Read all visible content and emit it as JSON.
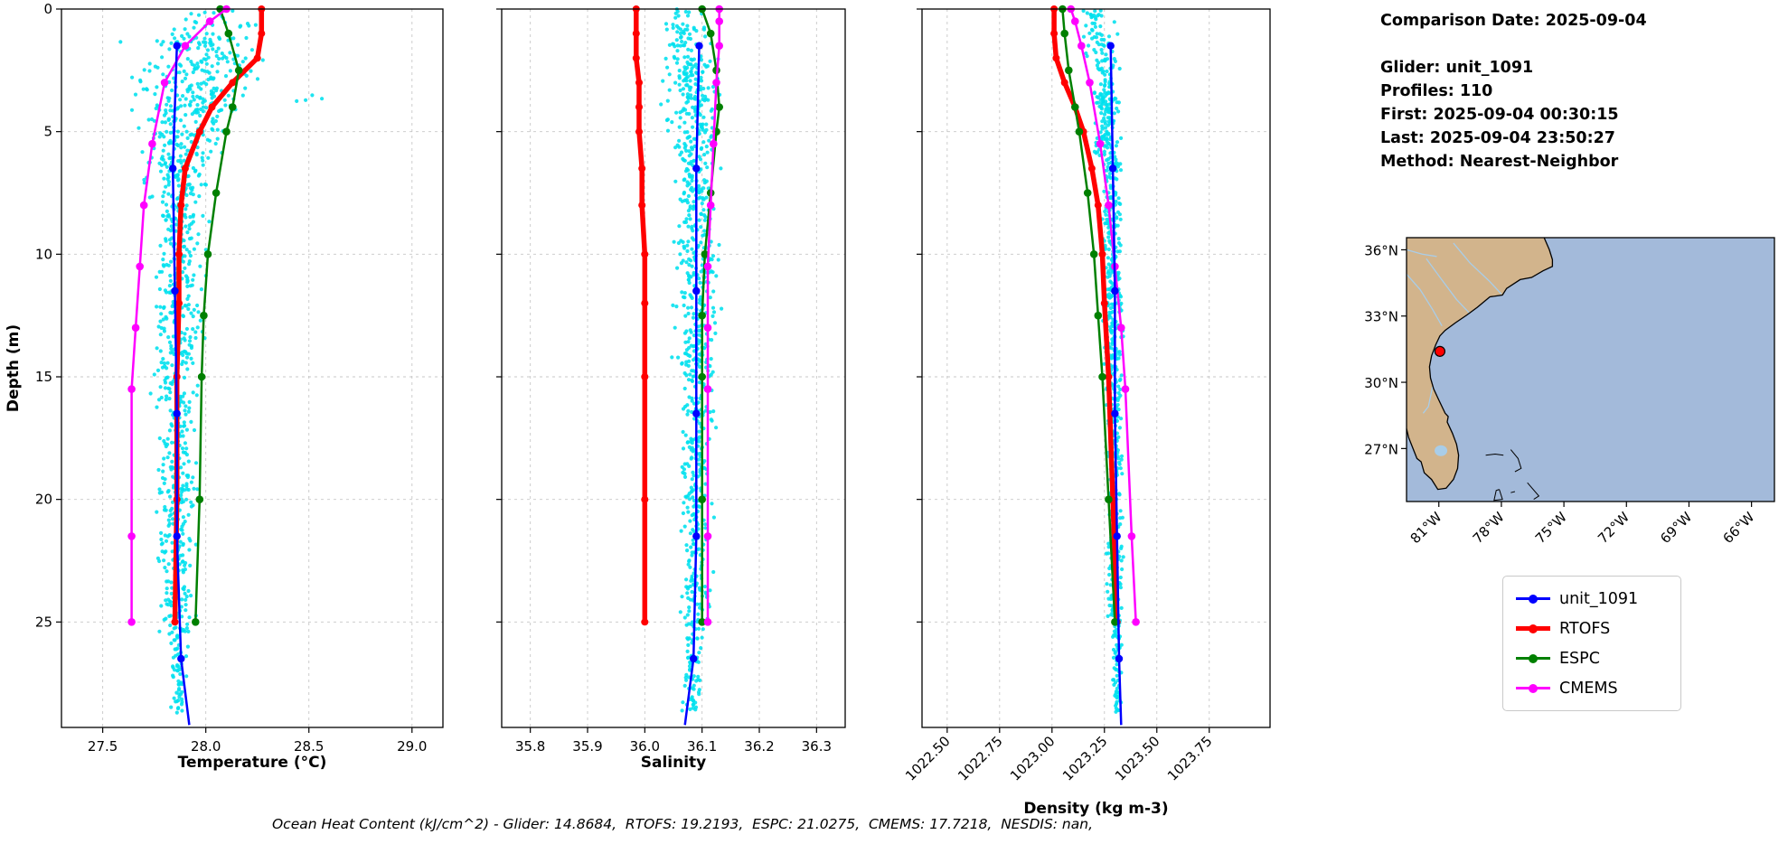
{
  "info_panel": {
    "comparison_date": "Comparison Date: 2025-09-04",
    "glider": "Glider: unit_1091",
    "profiles": "Profiles: 110",
    "first": "First: 2025-09-04 00:30:15",
    "last": "Last: 2025-09-04 23:50:27",
    "method": "Method: Nearest-Neighbor"
  },
  "footer_note": "Ocean Heat Content (kJ/cm^2) - Glider: 14.8684,  RTOFS: 19.2193,  ESPC: 21.0275,  CMEMS: 17.7218,  NESDIS: nan,",
  "legend": {
    "items": [
      {
        "label": "unit_1091",
        "color": "#0000ff",
        "line_width": 3
      },
      {
        "label": "RTOFS",
        "color": "#ff0000",
        "line_width": 5
      },
      {
        "label": "ESPC",
        "color": "#008000",
        "line_width": 3
      },
      {
        "label": "CMEMS",
        "color": "#ff00ff",
        "line_width": 3
      }
    ]
  },
  "chart_data": [
    {
      "type": "line",
      "name": "temperature",
      "xlabel": "Temperature (°C)",
      "ylabel": "Depth (m)",
      "xlim": [
        27.3,
        29.15
      ],
      "ylim": [
        0,
        29.3
      ],
      "xticks": [
        27.5,
        28.0,
        28.5,
        29.0
      ],
      "xtick_labels": [
        "27.5",
        "28.0",
        "28.5",
        "29.0"
      ],
      "yticks": [
        0,
        5,
        10,
        15,
        20,
        25
      ],
      "grid": true,
      "rotate_xticks": false,
      "scatter": {
        "name": "glider-temperature-observations",
        "color": "#00e0ee",
        "seed": 7,
        "bands": [
          {
            "depth": [
              0,
              1
            ],
            "center": 28.02,
            "spread": 0.28,
            "count": 22
          },
          {
            "depth": [
              1,
              3
            ],
            "center": 27.95,
            "spread": 0.42,
            "count": 130
          },
          {
            "depth": [
              2.5,
              4
            ],
            "center": 28.5,
            "spread": 0.12,
            "count": 4
          },
          {
            "depth": [
              3,
              5
            ],
            "center": 27.92,
            "spread": 0.33,
            "count": 130
          },
          {
            "depth": [
              5,
              8
            ],
            "center": 27.88,
            "spread": 0.24,
            "count": 160
          },
          {
            "depth": [
              8,
              15
            ],
            "center": 27.87,
            "spread": 0.17,
            "count": 240
          },
          {
            "depth": [
              15,
              22
            ],
            "center": 27.86,
            "spread": 0.14,
            "count": 200
          },
          {
            "depth": [
              22,
              25.5
            ],
            "center": 27.86,
            "spread": 0.11,
            "count": 100
          },
          {
            "depth": [
              25.5,
              28.7
            ],
            "center": 27.87,
            "spread": 0.05,
            "count": 55
          }
        ]
      },
      "series": [
        {
          "name": "RTOFS",
          "color": "#ff0000",
          "width": 5.5,
          "marker": 4,
          "depth": [
            0,
            1,
            2,
            3,
            4,
            5,
            6.5,
            8,
            10,
            12,
            15,
            20,
            25
          ],
          "values": [
            28.27,
            28.27,
            28.25,
            28.13,
            28.03,
            27.97,
            27.9,
            27.88,
            27.87,
            27.87,
            27.86,
            27.86,
            27.85
          ]
        },
        {
          "name": "ESPC",
          "color": "#008000",
          "width": 2.5,
          "marker": 4.3,
          "depth": [
            0,
            1,
            2.5,
            4,
            5,
            7.5,
            10,
            12.5,
            15,
            20,
            25
          ],
          "values": [
            28.07,
            28.11,
            28.16,
            28.13,
            28.1,
            28.05,
            28.01,
            27.99,
            27.98,
            27.97,
            27.95
          ]
        },
        {
          "name": "CMEMS",
          "color": "#ff00ff",
          "width": 2.5,
          "marker": 4.3,
          "depth": [
            0,
            0.5,
            1.5,
            3,
            5.5,
            8,
            10.5,
            13,
            15.5,
            21.5,
            25
          ],
          "values": [
            28.1,
            28.02,
            27.9,
            27.8,
            27.74,
            27.7,
            27.68,
            27.66,
            27.64,
            27.64,
            27.64
          ]
        },
        {
          "name": "unit_1091",
          "color": "#0000ff",
          "width": 2.5,
          "marker": 4.2,
          "depth": [
            1.5,
            6.5,
            11.5,
            16.5,
            21.5,
            26.5
          ],
          "values": [
            27.86,
            27.84,
            27.85,
            27.86,
            27.86,
            27.88
          ],
          "tail": [
            29.2,
            27.92
          ]
        }
      ]
    },
    {
      "type": "line",
      "name": "salinity",
      "xlabel": "Salinity",
      "ylabel": "",
      "xlim": [
        35.75,
        36.35
      ],
      "ylim": [
        0,
        29.3
      ],
      "xticks": [
        35.8,
        35.9,
        36.0,
        36.1,
        36.2,
        36.3
      ],
      "xtick_labels": [
        "35.8",
        "35.9",
        "36.0",
        "36.1",
        "36.2",
        "36.3"
      ],
      "yticks": [
        0,
        5,
        10,
        15,
        20,
        25
      ],
      "grid": true,
      "rotate_xticks": false,
      "scatter": {
        "name": "glider-salinity-observations",
        "color": "#00e0ee",
        "seed": 11,
        "bands": [
          {
            "depth": [
              0,
              2
            ],
            "center": 36.07,
            "spread": 0.055,
            "count": 55
          },
          {
            "depth": [
              2,
              6
            ],
            "center": 36.085,
            "spread": 0.06,
            "count": 180
          },
          {
            "depth": [
              6,
              15
            ],
            "center": 36.09,
            "spread": 0.05,
            "count": 300
          },
          {
            "depth": [
              15,
              25
            ],
            "center": 36.09,
            "spread": 0.04,
            "count": 240
          },
          {
            "depth": [
              25,
              28.7
            ],
            "center": 36.085,
            "spread": 0.025,
            "count": 70
          }
        ]
      },
      "series": [
        {
          "name": "RTOFS",
          "color": "#ff0000",
          "width": 5.5,
          "marker": 4,
          "depth": [
            0,
            1,
            2,
            3,
            4,
            5,
            6.5,
            8,
            10,
            12,
            15,
            20,
            25
          ],
          "values": [
            35.985,
            35.985,
            35.985,
            35.99,
            35.99,
            35.99,
            35.995,
            35.995,
            36.0,
            36.0,
            36.0,
            36.0,
            36.0
          ]
        },
        {
          "name": "ESPC",
          "color": "#008000",
          "width": 2.5,
          "marker": 4.3,
          "depth": [
            0,
            1,
            2.5,
            4,
            5,
            7.5,
            10,
            12.5,
            15,
            20,
            25
          ],
          "values": [
            36.1,
            36.115,
            36.125,
            36.13,
            36.125,
            36.115,
            36.105,
            36.1,
            36.1,
            36.1,
            36.1
          ]
        },
        {
          "name": "CMEMS",
          "color": "#ff00ff",
          "width": 2.5,
          "marker": 4.3,
          "depth": [
            0,
            0.5,
            1.5,
            3,
            5.5,
            8,
            10.5,
            13,
            15.5,
            21.5,
            25
          ],
          "values": [
            36.13,
            36.13,
            36.13,
            36.125,
            36.12,
            36.115,
            36.11,
            36.11,
            36.11,
            36.11,
            36.11
          ]
        },
        {
          "name": "unit_1091",
          "color": "#0000ff",
          "width": 2.5,
          "marker": 4.2,
          "depth": [
            1.5,
            6.5,
            11.5,
            16.5,
            21.5,
            26.5
          ],
          "values": [
            36.095,
            36.09,
            36.09,
            36.09,
            36.09,
            36.085
          ],
          "tail": [
            29.2,
            36.07
          ]
        }
      ]
    },
    {
      "type": "line",
      "name": "density",
      "xlabel": "Density (kg m-3)",
      "ylabel": "",
      "xlim": [
        1022.38,
        1024.04
      ],
      "ylim": [
        0,
        29.3
      ],
      "xticks": [
        1022.5,
        1022.75,
        1023.0,
        1023.25,
        1023.5,
        1023.75
      ],
      "xtick_labels": [
        "1022.50",
        "1022.75",
        "1023.00",
        "1023.25",
        "1023.50",
        "1023.75"
      ],
      "yticks": [
        0,
        5,
        10,
        15,
        20,
        25
      ],
      "grid": true,
      "rotate_xticks": true,
      "scatter": {
        "name": "glider-density-observations",
        "color": "#00e0ee",
        "seed": 13,
        "bands": [
          {
            "depth": [
              0,
              2
            ],
            "center": 1023.22,
            "spread": 0.1,
            "count": 50
          },
          {
            "depth": [
              2,
              6
            ],
            "center": 1023.26,
            "spread": 0.08,
            "count": 160
          },
          {
            "depth": [
              6,
              15
            ],
            "center": 1023.29,
            "spread": 0.06,
            "count": 280
          },
          {
            "depth": [
              15,
              25
            ],
            "center": 1023.3,
            "spread": 0.05,
            "count": 230
          },
          {
            "depth": [
              25,
              28.7
            ],
            "center": 1023.31,
            "spread": 0.03,
            "count": 65
          }
        ]
      },
      "series": [
        {
          "name": "RTOFS",
          "color": "#ff0000",
          "width": 5.5,
          "marker": 4,
          "depth": [
            0,
            1,
            2,
            3,
            4,
            5,
            6.5,
            8,
            10,
            12,
            15,
            20,
            25
          ],
          "values": [
            1023.01,
            1023.01,
            1023.02,
            1023.06,
            1023.11,
            1023.15,
            1023.19,
            1023.22,
            1023.24,
            1023.25,
            1023.27,
            1023.29,
            1023.31
          ]
        },
        {
          "name": "ESPC",
          "color": "#008000",
          "width": 2.5,
          "marker": 4.3,
          "depth": [
            0,
            1,
            2.5,
            4,
            5,
            7.5,
            10,
            12.5,
            15,
            20,
            25
          ],
          "values": [
            1023.05,
            1023.06,
            1023.08,
            1023.11,
            1023.13,
            1023.17,
            1023.2,
            1023.22,
            1023.24,
            1023.27,
            1023.3
          ]
        },
        {
          "name": "CMEMS",
          "color": "#ff00ff",
          "width": 2.5,
          "marker": 4.3,
          "depth": [
            0,
            0.5,
            1.5,
            3,
            5.5,
            8,
            10.5,
            13,
            15.5,
            21.5,
            25
          ],
          "values": [
            1023.09,
            1023.11,
            1023.14,
            1023.18,
            1023.23,
            1023.27,
            1023.3,
            1023.33,
            1023.35,
            1023.38,
            1023.4
          ]
        },
        {
          "name": "unit_1091",
          "color": "#0000ff",
          "width": 2.5,
          "marker": 4.2,
          "depth": [
            1.5,
            6.5,
            11.5,
            16.5,
            21.5,
            26.5
          ],
          "values": [
            1023.28,
            1023.29,
            1023.3,
            1023.3,
            1023.31,
            1023.32
          ],
          "tail": [
            29.2,
            1023.33
          ]
        }
      ]
    }
  ],
  "map": {
    "lon_range": [
      -82.55,
      -64.9
    ],
    "lat_range": [
      24.6,
      36.55
    ],
    "lon_ticks": [
      -81,
      -78,
      -75,
      -72,
      -69,
      -66
    ],
    "lon_tick_labels": [
      "81°W",
      "78°W",
      "75°W",
      "72°W",
      "69°W",
      "66°W"
    ],
    "lat_ticks": [
      36,
      33,
      30,
      27
    ],
    "lat_tick_labels": [
      "36°N",
      "33°N",
      "30°N",
      "27°N"
    ],
    "ocean_color": "#a3bada",
    "land_color": "#d2b48c",
    "river_color": "#a9cde8",
    "marker_color": "#ff0000",
    "marker": {
      "lon": -80.95,
      "lat": 31.4
    },
    "lake": [
      -80.9,
      26.9
    ],
    "coast": [
      [
        -75.95,
        36.55
      ],
      [
        -75.7,
        36.0
      ],
      [
        -75.55,
        35.55
      ],
      [
        -75.55,
        35.25
      ],
      [
        -76.0,
        35.05
      ],
      [
        -76.55,
        34.75
      ],
      [
        -77.1,
        34.65
      ],
      [
        -77.75,
        34.25
      ],
      [
        -77.95,
        33.95
      ],
      [
        -78.55,
        33.87
      ],
      [
        -79.15,
        33.4
      ],
      [
        -79.65,
        33.05
      ],
      [
        -80.2,
        32.7
      ],
      [
        -80.7,
        32.35
      ],
      [
        -80.95,
        32.1
      ],
      [
        -81.15,
        31.7
      ],
      [
        -81.35,
        31.2
      ],
      [
        -81.45,
        30.7
      ],
      [
        -81.4,
        30.2
      ],
      [
        -81.25,
        29.7
      ],
      [
        -81.0,
        29.2
      ],
      [
        -80.7,
        28.6
      ],
      [
        -80.55,
        28.45
      ],
      [
        -80.6,
        28.2
      ],
      [
        -80.35,
        27.7
      ],
      [
        -80.15,
        27.2
      ],
      [
        -80.05,
        26.7
      ],
      [
        -80.1,
        26.1
      ],
      [
        -80.3,
        25.6
      ],
      [
        -80.65,
        25.2
      ],
      [
        -81.05,
        25.15
      ],
      [
        -81.35,
        25.6
      ],
      [
        -81.7,
        25.9
      ],
      [
        -81.85,
        26.4
      ],
      [
        -82.05,
        26.55
      ],
      [
        -82.2,
        26.9
      ],
      [
        -82.45,
        27.5
      ],
      [
        -82.55,
        27.9
      ]
    ],
    "rivers": [
      [
        [
          -82.55,
          34.9
        ],
        [
          -81.9,
          34.2
        ],
        [
          -81.3,
          33.3
        ],
        [
          -80.85,
          32.55
        ]
      ],
      [
        [
          -81.6,
          35.6
        ],
        [
          -80.9,
          34.7
        ],
        [
          -80.15,
          33.75
        ],
        [
          -79.55,
          33.15
        ]
      ],
      [
        [
          -80.3,
          36.3
        ],
        [
          -79.5,
          35.4
        ],
        [
          -78.6,
          34.6
        ],
        [
          -78.0,
          34.0
        ]
      ],
      [
        [
          -82.55,
          36.0
        ],
        [
          -81.8,
          35.8
        ],
        [
          -81.1,
          35.7
        ]
      ],
      [
        [
          -81.3,
          29.8
        ],
        [
          -81.5,
          28.9
        ],
        [
          -81.75,
          28.6
        ]
      ]
    ],
    "islands": [
      [
        [
          -78.75,
          26.7
        ],
        [
          -78.3,
          26.75
        ],
        [
          -77.9,
          26.7
        ]
      ],
      [
        [
          -77.55,
          26.95
        ],
        [
          -77.2,
          26.55
        ],
        [
          -77.05,
          26.1
        ],
        [
          -77.35,
          25.95
        ]
      ],
      [
        [
          -78.1,
          25.15
        ],
        [
          -77.95,
          24.7
        ],
        [
          -78.35,
          24.65
        ],
        [
          -78.25,
          25.1
        ],
        [
          -78.1,
          25.15
        ]
      ],
      [
        [
          -76.75,
          25.45
        ],
        [
          -76.2,
          24.85
        ],
        [
          -76.45,
          24.7
        ]
      ],
      [
        [
          -77.35,
          25.05
        ],
        [
          -77.55,
          25.0
        ]
      ]
    ]
  }
}
